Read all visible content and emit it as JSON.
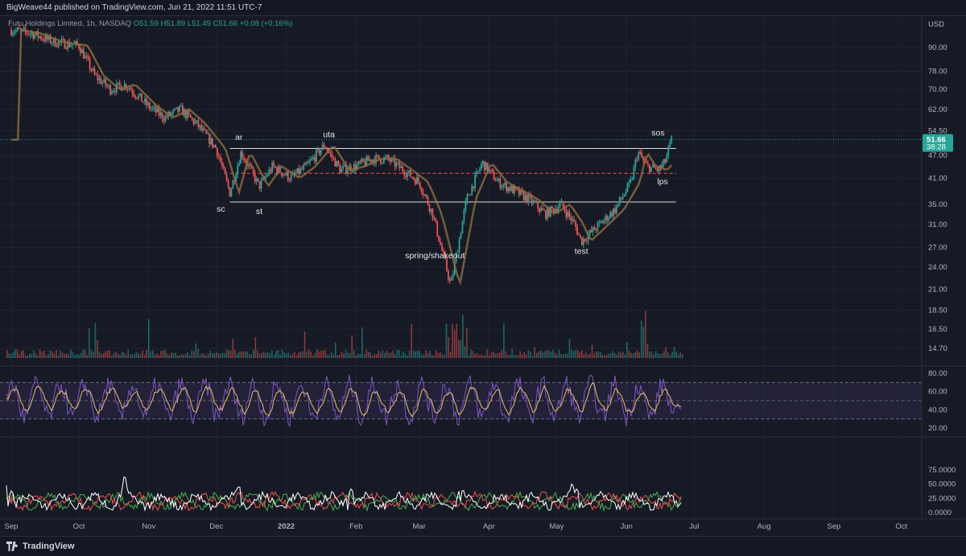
{
  "header": {
    "published": "BigWeave44 published on TradingView.com, Jun 21, 2022 11:51 UTC-7"
  },
  "symbol": {
    "name": "Futu Holdings Limited, 1h, NASDAQ",
    "ohlc": "O51.59  H51.89  L51.49  C51.66  +0.08 (+0.16%)"
  },
  "footer": {
    "brand": "TradingView"
  },
  "colors": {
    "background": "#161a25",
    "up": "#26a69a",
    "down": "#ef5350",
    "rsi_line": "#7e57c2",
    "rsi_signal": "#e7c35c",
    "di_plus": "#4caf50",
    "di_minus": "#ef5350",
    "adx": "#ffffff",
    "price_tag": "#26a69a"
  },
  "chart_data": {
    "type": "candlestick",
    "timeframe": "1h",
    "currency": "USD",
    "x_months": [
      "Sep",
      "Oct",
      "Nov",
      "Dec",
      "2022",
      "Feb",
      "Mar",
      "Apr",
      "May",
      "Jun",
      "Jul",
      "Aug",
      "Sep",
      "Oct"
    ],
    "price_axis": {
      "unit": "USD",
      "scale": "log",
      "ticks": [
        "90.00",
        "78.00",
        "70.00",
        "62.00",
        "54.50",
        "47.00",
        "41.00",
        "35.00",
        "31.00",
        "27.00",
        "24.00",
        "21.00",
        "18.50",
        "16.50",
        "14.70"
      ]
    },
    "price_tag": {
      "price": "51.66",
      "countdown": "38:28"
    },
    "price_path": [
      {
        "date": "2021-09-01",
        "price": 100
      },
      {
        "date": "2021-09-10",
        "price": 98
      },
      {
        "date": "2021-09-20",
        "price": 93
      },
      {
        "date": "2021-10-01",
        "price": 91
      },
      {
        "date": "2021-10-08",
        "price": 76
      },
      {
        "date": "2021-10-15",
        "price": 70
      },
      {
        "date": "2021-10-22",
        "price": 72
      },
      {
        "date": "2021-11-01",
        "price": 63
      },
      {
        "date": "2021-11-08",
        "price": 59
      },
      {
        "date": "2021-11-15",
        "price": 62
      },
      {
        "date": "2021-11-22",
        "price": 57
      },
      {
        "date": "2021-12-01",
        "price": 49
      },
      {
        "date": "2021-12-07",
        "price": 37.5
      },
      {
        "date": "2021-12-12",
        "price": 48
      },
      {
        "date": "2021-12-20",
        "price": 39
      },
      {
        "date": "2021-12-26",
        "price": 44
      },
      {
        "date": "2022-01-03",
        "price": 41
      },
      {
        "date": "2022-01-10",
        "price": 44
      },
      {
        "date": "2022-01-18",
        "price": 50
      },
      {
        "date": "2022-01-25",
        "price": 43
      },
      {
        "date": "2022-02-01",
        "price": 44
      },
      {
        "date": "2022-02-08",
        "price": 46
      },
      {
        "date": "2022-02-15",
        "price": 46
      },
      {
        "date": "2022-02-22",
        "price": 43
      },
      {
        "date": "2022-03-01",
        "price": 40
      },
      {
        "date": "2022-03-07",
        "price": 33
      },
      {
        "date": "2022-03-15",
        "price": 21.5
      },
      {
        "date": "2022-03-22",
        "price": 36
      },
      {
        "date": "2022-03-29",
        "price": 45
      },
      {
        "date": "2022-04-05",
        "price": 40
      },
      {
        "date": "2022-04-12",
        "price": 38
      },
      {
        "date": "2022-04-19",
        "price": 36
      },
      {
        "date": "2022-04-26",
        "price": 33
      },
      {
        "date": "2022-05-03",
        "price": 35
      },
      {
        "date": "2022-05-09",
        "price": 31
      },
      {
        "date": "2022-05-12",
        "price": 28
      },
      {
        "date": "2022-05-20",
        "price": 31
      },
      {
        "date": "2022-05-27",
        "price": 34
      },
      {
        "date": "2022-06-03",
        "price": 40
      },
      {
        "date": "2022-06-06",
        "price": 48
      },
      {
        "date": "2022-06-10",
        "price": 44
      },
      {
        "date": "2022-06-15",
        "price": 43
      },
      {
        "date": "2022-06-18",
        "price": 45
      },
      {
        "date": "2022-06-21",
        "price": 51.66
      }
    ],
    "levels": [
      {
        "name": "range-top",
        "price": 49.0,
        "from": "2021-12-07",
        "to": "2022-06-23",
        "style": "solid",
        "color": "#e0e0e0"
      },
      {
        "name": "range-bottom",
        "price": 35.5,
        "from": "2021-12-07",
        "to": "2022-06-23",
        "style": "solid",
        "color": "#e0e0e0"
      },
      {
        "name": "midline",
        "price": 42.2,
        "from": "2021-12-07",
        "to": "2022-06-23",
        "style": "dashed",
        "color": "#ef5350"
      }
    ],
    "annotations": [
      {
        "text": "sc",
        "date": "2021-12-03",
        "price": 33.5
      },
      {
        "text": "ar",
        "date": "2021-12-11",
        "price": 51.5
      },
      {
        "text": "st",
        "date": "2021-12-20",
        "price": 33.0
      },
      {
        "text": "uta",
        "date": "2022-01-20",
        "price": 52.5
      },
      {
        "text": "spring/shakeout",
        "date": "2022-03-08",
        "price": 25.3
      },
      {
        "text": "test",
        "date": "2022-05-12",
        "price": 26.0
      },
      {
        "text": "sos",
        "date": "2022-06-15",
        "price": 53.0
      },
      {
        "text": "lps",
        "date": "2022-06-17",
        "price": 39.5
      }
    ],
    "rsi": {
      "ticks": [
        "80.00",
        "60.00",
        "40.00",
        "20.00"
      ],
      "range": [
        20,
        80
      ],
      "bands": [
        70,
        50,
        30
      ]
    },
    "dmi": {
      "ticks": [
        "75.0000",
        "50.0000",
        "25.0000",
        "0.0000"
      ],
      "range": [
        0,
        80
      ]
    }
  }
}
